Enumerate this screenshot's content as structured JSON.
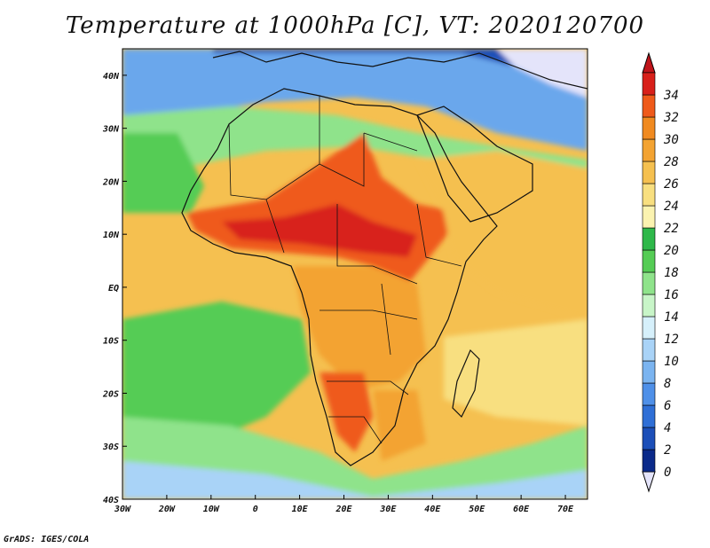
{
  "title": "Temperature at 1000hPa [C], VT: 2020120700",
  "credit": "GrADS: IGES/COLA",
  "map": {
    "variable": "Temperature at 1000hPa",
    "units": "C",
    "valid_time": "2020120700",
    "lon_range": [
      -30,
      75
    ],
    "lat_range": [
      -40,
      45
    ],
    "lon_ticks": [
      {
        "value": -30,
        "label": "30W"
      },
      {
        "value": -20,
        "label": "20W"
      },
      {
        "value": -10,
        "label": "10W"
      },
      {
        "value": 0,
        "label": "0"
      },
      {
        "value": 10,
        "label": "10E"
      },
      {
        "value": 20,
        "label": "20E"
      },
      {
        "value": 30,
        "label": "30E"
      },
      {
        "value": 40,
        "label": "40E"
      },
      {
        "value": 50,
        "label": "50E"
      },
      {
        "value": 60,
        "label": "60E"
      },
      {
        "value": 70,
        "label": "70E"
      }
    ],
    "lat_ticks": [
      {
        "value": 40,
        "label": "40N"
      },
      {
        "value": 30,
        "label": "30N"
      },
      {
        "value": 20,
        "label": "20N"
      },
      {
        "value": 10,
        "label": "10N"
      },
      {
        "value": 0,
        "label": "EQ"
      },
      {
        "value": -10,
        "label": "10S"
      },
      {
        "value": -20,
        "label": "20S"
      },
      {
        "value": -30,
        "label": "30S"
      },
      {
        "value": -40,
        "label": "40S"
      }
    ]
  },
  "colorbar": {
    "levels": [
      "0",
      "2",
      "4",
      "6",
      "8",
      "10",
      "12",
      "14",
      "16",
      "18",
      "20",
      "22",
      "24",
      "26",
      "28",
      "30",
      "32",
      "34"
    ],
    "colors": [
      "#0b2a8a",
      "#1c4fb8",
      "#2f6fd6",
      "#4f90e8",
      "#7bb4f0",
      "#a9d3f7",
      "#d6f0fb",
      "#c8f5c8",
      "#8fe38b",
      "#55cc55",
      "#2eb84a",
      "#fbf3b0",
      "#f8df80",
      "#f5c050",
      "#f3a332",
      "#f08a20",
      "#ef5a1a",
      "#d8201a"
    ],
    "under_color": "#e4e4fa",
    "over_color": "#c0141a"
  }
}
